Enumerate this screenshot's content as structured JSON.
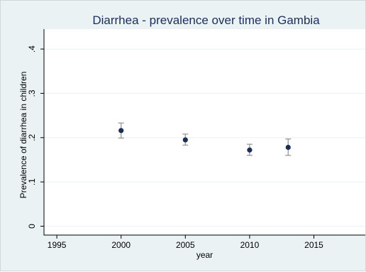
{
  "chart_data": {
    "type": "scatter",
    "title": "Diarrhea - prevalence over time in Gambia",
    "xlabel": "year",
    "ylabel": "Prevalence of diarrhea in children",
    "xlim": [
      1994,
      2019
    ],
    "ylim": [
      -0.02,
      0.445
    ],
    "x_ticks": [
      1995,
      2000,
      2005,
      2010,
      2015
    ],
    "x_tick_labels": [
      "1995",
      "2000",
      "2005",
      "2010",
      "2015"
    ],
    "y_ticks": [
      0,
      0.1,
      0.2,
      0.3,
      0.4
    ],
    "y_tick_labels": [
      "0",
      ".1",
      ".2",
      ".3",
      ".4"
    ],
    "grid": "horizontal",
    "points": [
      {
        "x": 2000,
        "y": 0.216,
        "lower": 0.199,
        "upper": 0.233
      },
      {
        "x": 2005,
        "y": 0.195,
        "lower": 0.183,
        "upper": 0.208
      },
      {
        "x": 2010,
        "y": 0.172,
        "lower": 0.16,
        "upper": 0.185
      },
      {
        "x": 2013,
        "y": 0.178,
        "lower": 0.16,
        "upper": 0.197
      }
    ],
    "colors": {
      "plot_background": "#ffffff",
      "outer_background": "#eaf2f3",
      "title": "#1a2e5a",
      "marker": "#1a2e5a",
      "error_bar": "#999999",
      "grid": "#eaf2f3"
    }
  }
}
